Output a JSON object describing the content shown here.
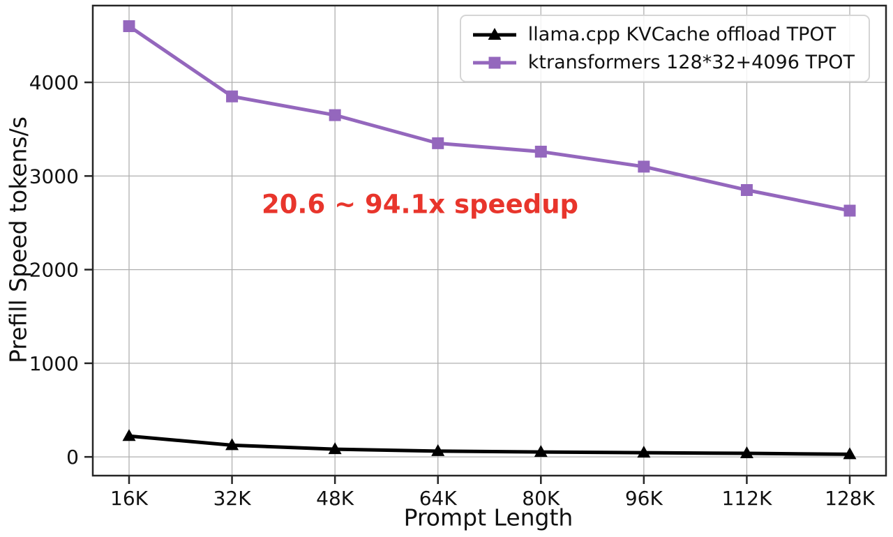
{
  "chart_data": {
    "type": "line",
    "xlabel": "Prompt Length",
    "ylabel": "Prefill Speed tokens/s",
    "categories": [
      "16K",
      "32K",
      "48K",
      "64K",
      "80K",
      "96K",
      "112K",
      "128K"
    ],
    "series": [
      {
        "name": "llama.cpp KVCache offload TPOT",
        "values": [
          223,
          125,
          82,
          62,
          52,
          45,
          38,
          28
        ],
        "color": "#000000",
        "marker": "triangle"
      },
      {
        "name": "ktransformers 128*32+4096 TPOT",
        "values": [
          4600,
          3850,
          3650,
          3350,
          3260,
          3100,
          2850,
          2630
        ],
        "color": "#9467bd",
        "marker": "square"
      }
    ],
    "yticks": [
      0,
      1000,
      2000,
      3000,
      4000
    ],
    "ylim": [
      -200,
      4820
    ],
    "grid": true,
    "legend_position": "upper right",
    "annotation": {
      "text": "20.6 ~ 94.1x speedup",
      "color": "#e8352c"
    },
    "colors": {
      "grid": "#b0b0b0",
      "spine": "#262626",
      "tick_label": "#111111"
    }
  }
}
